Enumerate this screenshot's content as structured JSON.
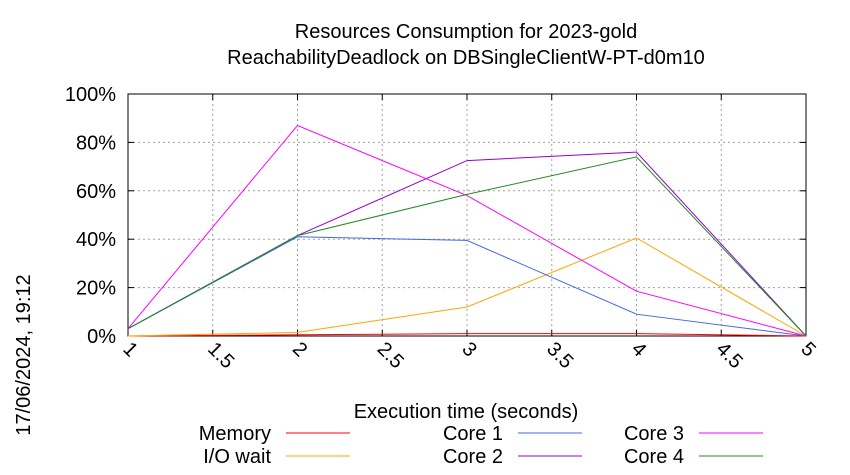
{
  "chart_data": {
    "type": "line",
    "title_line1": "Resources Consumption for 2023-gold",
    "title_line2": "ReachabilityDeadlock on DBSingleClientW-PT-d0m10",
    "xlabel": "Execution time (seconds)",
    "ylabel": "",
    "side_label": "17/06/2024, 19:12",
    "xlim": [
      1,
      5
    ],
    "ylim": [
      0,
      100
    ],
    "x_ticks": [
      "1",
      "1.5",
      "2",
      "2.5",
      "3",
      "3.5",
      "4",
      "4.5",
      "5"
    ],
    "y_ticks": [
      "0%",
      "20%",
      "40%",
      "60%",
      "80%",
      "100%"
    ],
    "grid": true,
    "legend_position": "bottom",
    "series": [
      {
        "name": "Memory",
        "color": "#ff0000",
        "x": [
          1,
          2,
          3,
          4,
          5
        ],
        "y": [
          0,
          0.5,
          1,
          1,
          0
        ]
      },
      {
        "name": "I/O wait",
        "color": "#ffa500",
        "x": [
          1,
          2,
          3,
          4,
          5
        ],
        "y": [
          0,
          1.5,
          12,
          40.5,
          0
        ]
      },
      {
        "name": "Core 1",
        "color": "#4169e1",
        "x": [
          1,
          2,
          3,
          4,
          5
        ],
        "y": [
          3,
          41,
          39.5,
          9,
          0
        ]
      },
      {
        "name": "Core 2",
        "color": "#9400d3",
        "x": [
          1,
          2,
          3,
          4,
          5
        ],
        "y": [
          3,
          41.5,
          72.5,
          76,
          0
        ]
      },
      {
        "name": "Core 3",
        "color": "#ff00ff",
        "x": [
          1,
          2,
          3,
          4,
          5
        ],
        "y": [
          3,
          87,
          58,
          18.5,
          0
        ]
      },
      {
        "name": "Core 4",
        "color": "#228b22",
        "x": [
          1,
          2,
          3,
          4,
          5
        ],
        "y": [
          3,
          41.5,
          58.5,
          74,
          0
        ]
      }
    ]
  }
}
